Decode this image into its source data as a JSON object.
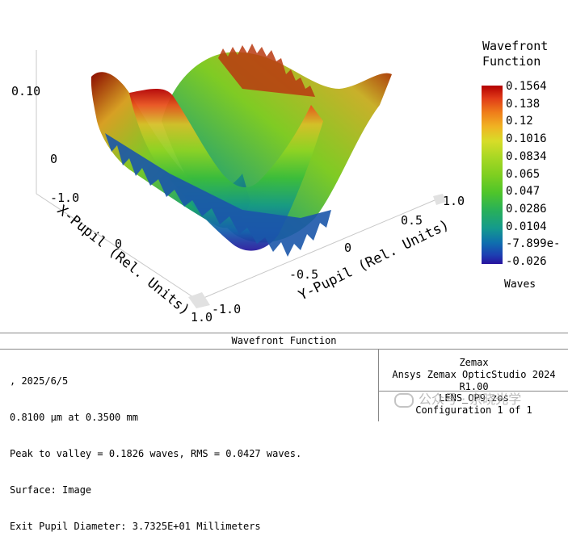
{
  "plot": {
    "z_ticks": [
      "0.10",
      "0"
    ],
    "x_axis": {
      "title": "X-Pupil (Rel. Units)",
      "ticks": [
        "-1.0",
        "0",
        "1.0"
      ]
    },
    "y_axis": {
      "title": "Y-Pupil (Rel. Units)",
      "ticks": [
        "-1.0",
        "-0.5",
        "0",
        "0.5",
        "1.0"
      ]
    }
  },
  "legend": {
    "title": "Wavefront\nFunction",
    "ticks": [
      "0.1564",
      "0.138",
      "0.12",
      "0.1016",
      "0.0834",
      "0.065",
      "0.047",
      "0.0286",
      "0.0104",
      "-7.899e-",
      "-0.026"
    ],
    "units": "Waves",
    "colors": [
      "#b30000",
      "#f0b323",
      "#7fcf20",
      "#149a8d",
      "#28139e"
    ]
  },
  "info": {
    "header": "Wavefront Function",
    "lines": [
      ", 2025/6/5",
      "0.8100 µm at 0.3500 mm",
      "Peak to valley = 0.1826 waves, RMS = 0.0427 waves.",
      "Surface: Image",
      "Exit Pupil Diameter: 3.7325E+01 Millimeters"
    ],
    "company": "Zemax",
    "product": "Ansys Zemax OpticStudio 2024 R1.00",
    "file": "LENS_OP9.zos",
    "configuration": "Configuration 1 of 1"
  },
  "watermark": "公众号 · 京晓光学"
}
